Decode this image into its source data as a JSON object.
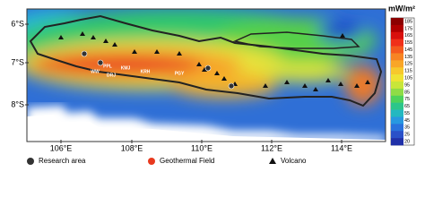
{
  "map": {
    "lat_labels": [
      "6°S",
      "7°S",
      "8°S"
    ],
    "lon_labels": [
      "106°E",
      "108°E",
      "110°E",
      "112°E",
      "114°E"
    ],
    "field_labels": [
      "PPL",
      "KMJ",
      "WW",
      "DRJ",
      "KRH",
      "PGY"
    ],
    "colorbar": {
      "unit": "mW/m²",
      "ticks": [
        "185",
        "175",
        "165",
        "155",
        "145",
        "135",
        "125",
        "115",
        "105",
        "95",
        "85",
        "75",
        "65",
        "55",
        "45",
        "35",
        "25",
        "20"
      ]
    },
    "legend": [
      "Research area",
      "Geothermal Field",
      "Volcano"
    ]
  }
}
